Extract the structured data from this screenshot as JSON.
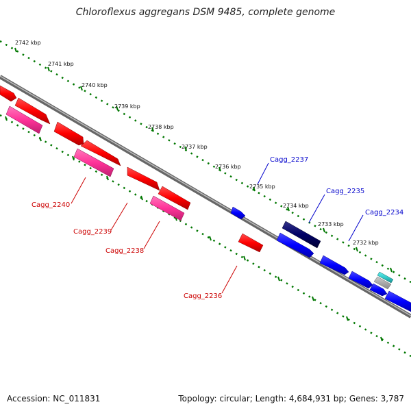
{
  "title": "Chloroflexus aggregans DSM 9485, complete genome",
  "footer": {
    "accession": "Accession: NC_011831",
    "summary": "Topology: circular; Length: 4,684,931 bp; Genes: 3,787"
  },
  "ticks": [
    "2742 kbp",
    "2741 kbp",
    "2740 kbp",
    "2739 kbp",
    "2738 kbp",
    "2737 kbp",
    "2736 kbp",
    "2735 kbp",
    "2734 kbp",
    "2733 kbp",
    "2732 kbp"
  ],
  "gene_labels": {
    "cagg_2240": "Cagg_2240",
    "cagg_2239": "Cagg_2239",
    "cagg_2238": "Cagg_2238",
    "cagg_2236": "Cagg_2236",
    "cagg_2237": "Cagg_2237",
    "cagg_2235": "Cagg_2235",
    "cagg_2234": "Cagg_2234"
  },
  "colors": {
    "reverse_strand": "#ff0000",
    "reverse_rna": "#ff3399",
    "forward_strand": "#0000ff",
    "forward_dark": "#000066",
    "forward_cyan": "#33cccc",
    "backbone": "#888888",
    "tick": "#007700",
    "label_red": "#cc0000",
    "label_blue": "#0000cc"
  }
}
